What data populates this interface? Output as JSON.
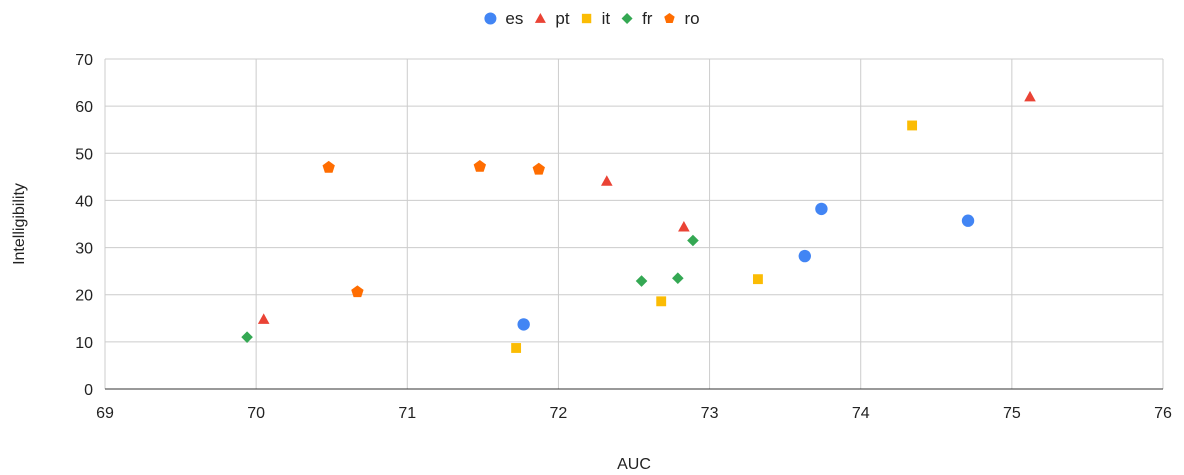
{
  "chart_data": {
    "type": "scatter",
    "xlabel": "AUC",
    "ylabel": "Intelligibility",
    "xlim": [
      69,
      76
    ],
    "ylim": [
      0,
      70
    ],
    "x_ticks": [
      "69",
      "70",
      "71",
      "72",
      "73",
      "74",
      "75",
      "76"
    ],
    "y_ticks": [
      "0",
      "10",
      "20",
      "30",
      "40",
      "50",
      "60",
      "70"
    ],
    "grid": true,
    "legend_position": "top",
    "series": [
      {
        "name": "es",
        "marker": "circle",
        "color": "#4285f4",
        "points": [
          [
            71.77,
            13.7
          ],
          [
            73.63,
            28.2
          ],
          [
            73.74,
            38.2
          ],
          [
            74.71,
            35.7
          ]
        ]
      },
      {
        "name": "pt",
        "marker": "triangle",
        "color": "#ea4335",
        "points": [
          [
            70.05,
            14.8
          ],
          [
            72.32,
            44.1
          ],
          [
            72.83,
            34.4
          ],
          [
            75.12,
            62.0
          ]
        ]
      },
      {
        "name": "it",
        "marker": "square",
        "color": "#fbbc04",
        "points": [
          [
            71.72,
            8.7
          ],
          [
            72.68,
            18.6
          ],
          [
            73.32,
            23.3
          ],
          [
            74.34,
            55.9
          ]
        ]
      },
      {
        "name": "fr",
        "marker": "diamond",
        "color": "#34a853",
        "points": [
          [
            69.94,
            11.0
          ],
          [
            72.55,
            22.9
          ],
          [
            72.79,
            23.5
          ],
          [
            72.89,
            31.5
          ]
        ]
      },
      {
        "name": "ro",
        "marker": "pentagon",
        "color": "#ff6d01",
        "points": [
          [
            70.48,
            47.0
          ],
          [
            70.67,
            20.6
          ],
          [
            71.48,
            47.2
          ],
          [
            71.87,
            46.6
          ]
        ]
      }
    ]
  }
}
